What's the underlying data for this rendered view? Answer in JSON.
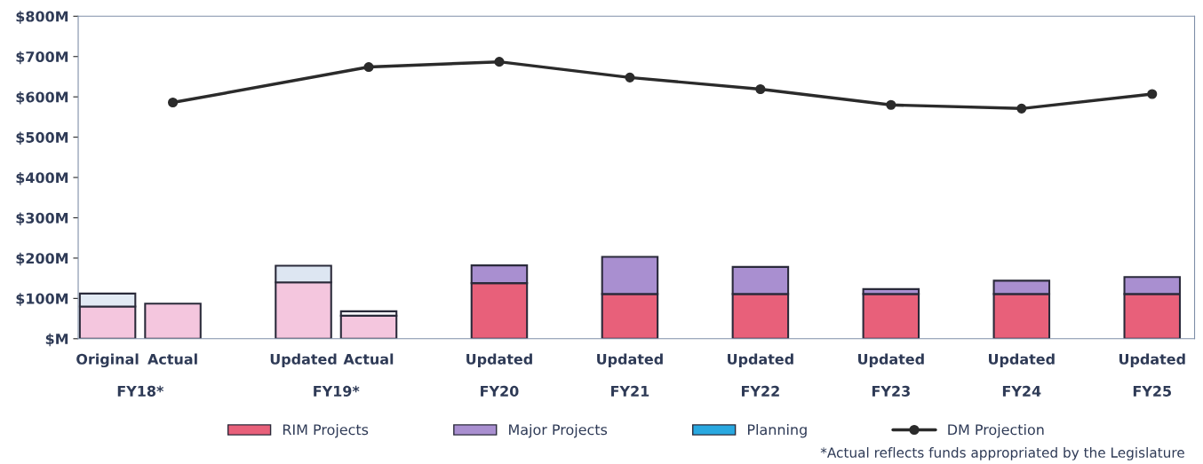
{
  "chart_data": {
    "type": "bar",
    "stacked": true,
    "categories": [
      "Original",
      "Actual",
      null,
      "Updated",
      "Actual",
      null,
      "Updated",
      null,
      "Updated",
      null,
      "Updated",
      null,
      "Updated",
      null,
      "Updated",
      null,
      "Updated"
    ],
    "ylim": [
      0,
      800
    ],
    "yticks": [
      {
        "value": 0,
        "label": "$M"
      },
      {
        "value": 100,
        "label": "$100M"
      },
      {
        "value": 200,
        "label": "$200M"
      },
      {
        "value": 300,
        "label": "$300M"
      },
      {
        "value": 400,
        "label": "$400M"
      },
      {
        "value": 500,
        "label": "$500M"
      },
      {
        "value": 600,
        "label": "$600M"
      },
      {
        "value": 700,
        "label": "$700M"
      },
      {
        "value": 800,
        "label": "$800M"
      }
    ],
    "series": [
      {
        "name": "RIM Projects",
        "color": "#e8607a",
        "colors": [
          "#f4c6de",
          "#f4c6de",
          null,
          "#f4c6de",
          "#f4c6de",
          null,
          "#e8607a",
          null,
          "#e8607a",
          null,
          "#e8607a",
          null,
          "#e8607a",
          null,
          "#e8607a",
          null,
          "#e8607a"
        ],
        "values": [
          80,
          87,
          null,
          140,
          57,
          null,
          138,
          null,
          111,
          null,
          111,
          null,
          111,
          null,
          111,
          null,
          111
        ]
      },
      {
        "name": "Major Projects",
        "color": "#a98fd0",
        "colors": [
          "#e2eaf4",
          "#e2eaf4",
          null,
          "#dde6f2",
          "#f4f4f8",
          null,
          "#a98fd0",
          null,
          "#a98fd0",
          null,
          "#a98fd0",
          null,
          "#a98fd0",
          null,
          "#a98fd0",
          null,
          "#a98fd0"
        ],
        "values": [
          32,
          null,
          null,
          41,
          11,
          null,
          44,
          null,
          92,
          null,
          67,
          null,
          12,
          null,
          33,
          null,
          42
        ]
      },
      {
        "name": "Planning",
        "color": "#29a8e0",
        "values": [
          null,
          null,
          null,
          null,
          null,
          null,
          null,
          null,
          null,
          null,
          null,
          null,
          null,
          null,
          null,
          null,
          null
        ]
      },
      {
        "name": "DM Projection",
        "type": "line",
        "color": "#2b2b2b",
        "marker": "circle",
        "values": [
          null,
          586,
          null,
          null,
          674,
          null,
          687,
          null,
          648,
          null,
          619,
          null,
          580,
          null,
          571,
          null,
          607
        ]
      }
    ],
    "annotations": [
      "FY18*",
      "FY19*",
      "FY20",
      "FY21",
      "FY22",
      "FY23",
      "FY24",
      "FY25",
      "*Actual reflects funds appropriated by the Legislature"
    ],
    "legend": "bottom",
    "grid": false
  }
}
